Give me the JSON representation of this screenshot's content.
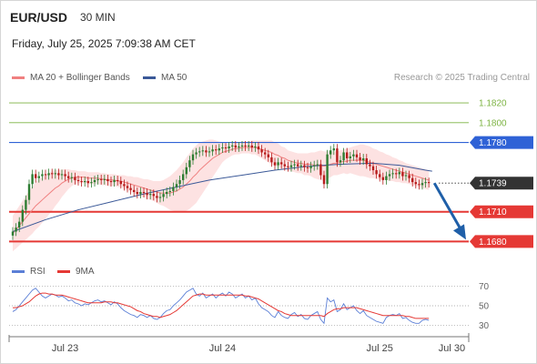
{
  "header": {
    "symbol": "EUR/USD",
    "timeframe": "30 MIN",
    "datetime": "Friday, July 25, 2025 7:09:38 AM CET"
  },
  "legend": {
    "ma20_label": "MA 20 + Bollinger Bands",
    "ma50_label": "MA 50",
    "source": "Research © 2025 Trading Central",
    "rsi_label": "RSI",
    "rsi_ma_label": "9MA"
  },
  "colors": {
    "ma20": "#f08080",
    "ma50": "#3b5998",
    "bb_fill": "#fde2e2",
    "resistance": "#7cb342",
    "pivot": "#2f62d6",
    "support": "#e53935",
    "candle_up": "#2e7d32",
    "candle_down": "#b71c1c",
    "rsi": "#5b7fd6",
    "rsi_ma": "#e53935",
    "current": "#333333",
    "arrow": "#1f5fa8"
  },
  "levels": [
    {
      "value": 1.182,
      "label": "1.1820",
      "kind": "resistance"
    },
    {
      "value": 1.18,
      "label": "1.1800",
      "kind": "resistance"
    },
    {
      "value": 1.178,
      "label": "1.1780",
      "kind": "pivot"
    },
    {
      "value": 1.1739,
      "label": "1.1739",
      "kind": "current"
    },
    {
      "value": 1.171,
      "label": "1.1710",
      "kind": "support"
    },
    {
      "value": 1.168,
      "label": "1.1680",
      "kind": "support"
    }
  ],
  "chart_data": {
    "type": "line",
    "price_range": [
      1.1673,
      1.1832
    ],
    "rsi_range": [
      22,
      78
    ],
    "rsi_ticks": [
      70,
      50,
      30
    ],
    "x_labels": [
      {
        "label": "Jul 23",
        "index": 16
      },
      {
        "label": "Jul 24",
        "index": 64
      },
      {
        "label": "Jul 25",
        "index": 112
      },
      {
        "label": "Jul 30",
        "index": 134
      }
    ],
    "close": [
      1.169,
      1.1694,
      1.17,
      1.1712,
      1.1722,
      1.1738,
      1.1748,
      1.1744,
      1.1746,
      1.1748,
      1.1747,
      1.1749,
      1.1748,
      1.1749,
      1.1747,
      1.1748,
      1.1746,
      1.1744,
      1.1745,
      1.1742,
      1.1741,
      1.174,
      1.1741,
      1.1739,
      1.174,
      1.1742,
      1.1743,
      1.1742,
      1.1743,
      1.1741,
      1.174,
      1.1742,
      1.1741,
      1.1738,
      1.1736,
      1.1734,
      1.1732,
      1.173,
      1.1728,
      1.173,
      1.1729,
      1.1727,
      1.1728,
      1.1726,
      1.1724,
      1.1725,
      1.1728,
      1.173,
      1.1731,
      1.1735,
      1.1738,
      1.1742,
      1.1748,
      1.1755,
      1.1762,
      1.1768,
      1.177,
      1.1771,
      1.1772,
      1.177,
      1.1771,
      1.1773,
      1.1772,
      1.1774,
      1.1775,
      1.1774,
      1.1776,
      1.1777,
      1.1775,
      1.1776,
      1.1777,
      1.1776,
      1.1777,
      1.1775,
      1.1776,
      1.1773,
      1.177,
      1.1768,
      1.1765,
      1.176,
      1.1757,
      1.176,
      1.1758,
      1.1756,
      1.1755,
      1.1757,
      1.1758,
      1.1756,
      1.1757,
      1.1755,
      1.1754,
      1.1756,
      1.1757,
      1.1758,
      1.1747,
      1.1738,
      1.1768,
      1.1772,
      1.1774,
      1.176,
      1.1762,
      1.177,
      1.1764,
      1.1766,
      1.1768,
      1.1765,
      1.1762,
      1.1764,
      1.1758,
      1.1756,
      1.1752,
      1.1748,
      1.1745,
      1.1742,
      1.1746,
      1.1748,
      1.1749,
      1.1748,
      1.175,
      1.1746,
      1.1747,
      1.1744,
      1.174,
      1.1738,
      1.1737,
      1.1739,
      1.174,
      1.1739
    ],
    "ma20": [
      1.1688,
      1.1692,
      1.1696,
      1.17,
      1.1704,
      1.1708,
      1.1712,
      1.1716,
      1.1719,
      1.1722,
      1.1725,
      1.1728,
      1.1731,
      1.1734,
      1.1736,
      1.1739,
      1.1741,
      1.1743,
      1.1744,
      1.1745,
      1.1745,
      1.1745,
      1.1745,
      1.1744,
      1.1744,
      1.1744,
      1.1744,
      1.1743,
      1.1743,
      1.1742,
      1.1742,
      1.1742,
      1.1741,
      1.1741,
      1.174,
      1.1739,
      1.1738,
      1.1737,
      1.1736,
      1.1735,
      1.1734,
      1.1733,
      1.1732,
      1.1731,
      1.173,
      1.1729,
      1.1729,
      1.1729,
      1.1729,
      1.173,
      1.1731,
      1.1733,
      1.1735,
      1.1738,
      1.1741,
      1.1745,
      1.1748,
      1.1752,
      1.1755,
      1.1758,
      1.1761,
      1.1764,
      1.1766,
      1.1768,
      1.177,
      1.1771,
      1.1772,
      1.1773,
      1.1774,
      1.1774,
      1.1775,
      1.1775,
      1.1775,
      1.1775,
      1.1775,
      1.1774,
      1.1773,
      1.1772,
      1.1771,
      1.177,
      1.1768,
      1.1767,
      1.1765,
      1.1764,
      1.1762,
      1.1761,
      1.176,
      1.1759,
      1.1759,
      1.1758,
      1.1758,
      1.1758,
      1.1757,
      1.1757,
      1.1757,
      1.1756,
      1.1757,
      1.1758,
      1.1759,
      1.1759,
      1.176,
      1.1761,
      1.1761,
      1.1762,
      1.1762,
      1.1762,
      1.1762,
      1.1762,
      1.1761,
      1.176,
      1.1759,
      1.1758,
      1.1757,
      1.1756,
      1.1755,
      1.1754,
      1.1753,
      1.1752,
      1.1751,
      1.175,
      1.1749,
      1.1748,
      1.1747,
      1.1746,
      1.1745,
      1.1744,
      1.1743,
      1.1742
    ],
    "bb_width": [
      0.0018,
      0.0019,
      0.002,
      0.0021,
      0.0022,
      0.0023,
      0.0024,
      0.0024,
      0.0024,
      0.0023,
      0.0022,
      0.0021,
      0.002,
      0.0018,
      0.0016,
      0.0014,
      0.0012,
      0.001,
      0.0008,
      0.0007,
      0.0006,
      0.0006,
      0.0006,
      0.0006,
      0.0006,
      0.0006,
      0.0006,
      0.0006,
      0.0006,
      0.0006,
      0.0006,
      0.0006,
      0.0006,
      0.0006,
      0.0007,
      0.0007,
      0.0008,
      0.0008,
      0.0009,
      0.0009,
      0.0009,
      0.001,
      0.001,
      0.001,
      0.0011,
      0.0012,
      0.0013,
      0.0015,
      0.0017,
      0.0019,
      0.0021,
      0.0023,
      0.0025,
      0.0027,
      0.0028,
      0.0029,
      0.0029,
      0.0028,
      0.0026,
      0.0024,
      0.0022,
      0.0019,
      0.0016,
      0.0013,
      0.001,
      0.0008,
      0.0007,
      0.0006,
      0.0006,
      0.0006,
      0.0006,
      0.0006,
      0.0006,
      0.0007,
      0.0007,
      0.0008,
      0.0009,
      0.001,
      0.0011,
      0.0012,
      0.0012,
      0.0012,
      0.0011,
      0.0011,
      0.001,
      0.001,
      0.001,
      0.001,
      0.001,
      0.0011,
      0.0011,
      0.0012,
      0.0013,
      0.0014,
      0.0015,
      0.0015,
      0.0014,
      0.0013,
      0.0012,
      0.0012,
      0.0012,
      0.0012,
      0.0013,
      0.0013,
      0.0014,
      0.0015,
      0.0016,
      0.0016,
      0.0016,
      0.0016,
      0.0015,
      0.0015,
      0.0014,
      0.0014,
      0.0013,
      0.0013,
      0.0012,
      0.0012,
      0.0011,
      0.0011,
      0.001,
      0.001,
      0.001,
      0.001,
      0.001,
      0.001,
      0.001,
      0.001
    ],
    "ma50_points": [
      [
        0,
        1.169
      ],
      [
        10,
        1.1702
      ],
      [
        20,
        1.1712
      ],
      [
        30,
        1.172
      ],
      [
        40,
        1.1728
      ],
      [
        50,
        1.1735
      ],
      [
        60,
        1.1742
      ],
      [
        70,
        1.1747
      ],
      [
        80,
        1.1752
      ],
      [
        90,
        1.1756
      ],
      [
        100,
        1.1758
      ],
      [
        110,
        1.1759
      ],
      [
        118,
        1.1757
      ],
      [
        126,
        1.1752
      ],
      [
        128,
        1.1751
      ]
    ],
    "rsi": [
      44,
      46,
      50,
      54,
      58,
      62,
      66,
      68,
      64,
      60,
      58,
      60,
      62,
      61,
      59,
      60,
      58,
      55,
      56,
      53,
      52,
      50,
      52,
      51,
      53,
      55,
      56,
      54,
      55,
      53,
      51,
      54,
      52,
      48,
      45,
      43,
      41,
      40,
      38,
      41,
      40,
      38,
      40,
      37,
      36,
      38,
      42,
      45,
      46,
      50,
      53,
      56,
      60,
      64,
      66,
      68,
      62,
      60,
      63,
      58,
      60,
      62,
      58,
      61,
      63,
      60,
      64,
      62,
      58,
      60,
      62,
      58,
      60,
      56,
      58,
      52,
      48,
      46,
      44,
      40,
      38,
      44,
      40,
      38,
      37,
      41,
      43,
      39,
      41,
      37,
      36,
      40,
      42,
      44,
      36,
      32,
      58,
      54,
      56,
      44,
      46,
      52,
      46,
      48,
      50,
      45,
      42,
      45,
      40,
      38,
      36,
      34,
      33,
      32,
      38,
      40,
      41,
      40,
      42,
      37,
      38,
      35,
      33,
      32,
      32,
      35,
      36,
      35
    ],
    "rsi_ma": [
      48,
      48,
      49,
      50,
      52,
      54,
      57,
      60,
      62,
      63,
      63,
      62,
      62,
      61,
      61,
      61,
      60,
      59,
      58,
      57,
      56,
      55,
      54,
      53,
      53,
      53,
      53,
      53,
      54,
      54,
      54,
      53,
      53,
      52,
      51,
      50,
      49,
      47,
      45,
      44,
      42,
      41,
      40,
      39,
      39,
      38,
      39,
      40,
      41,
      43,
      45,
      48,
      51,
      54,
      57,
      60,
      61,
      62,
      62,
      61,
      61,
      61,
      61,
      61,
      61,
      61,
      61,
      61,
      61,
      61,
      61,
      60,
      60,
      59,
      58,
      57,
      55,
      53,
      51,
      49,
      47,
      45,
      44,
      42,
      41,
      40,
      40,
      40,
      40,
      40,
      40,
      40,
      40,
      40,
      40,
      39,
      42,
      44,
      46,
      47,
      47,
      48,
      48,
      48,
      48,
      48,
      47,
      46,
      45,
      44,
      43,
      42,
      41,
      40,
      40,
      40,
      40,
      40,
      40,
      40,
      39,
      39,
      38,
      37,
      37,
      37,
      37,
      37
    ]
  }
}
